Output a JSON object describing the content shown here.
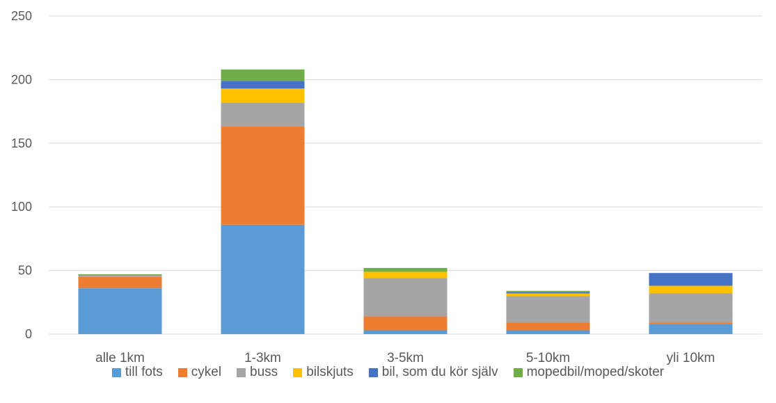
{
  "chart_data": {
    "type": "bar",
    "stacked": true,
    "categories": [
      "alle 1km",
      "1-3km",
      "3-5km",
      "5-10km",
      "yli 10km"
    ],
    "series": [
      {
        "name": "till fots",
        "color": "#5B9BD5",
        "values": [
          36,
          86,
          3,
          3,
          8
        ]
      },
      {
        "name": "cykel",
        "color": "#ED7D31",
        "values": [
          9,
          77,
          11,
          6,
          1
        ]
      },
      {
        "name": "buss",
        "color": "#A5A5A5",
        "values": [
          1,
          19,
          30,
          21,
          23
        ]
      },
      {
        "name": "bilskjuts",
        "color": "#FFC000",
        "values": [
          0,
          11,
          5,
          2,
          6
        ]
      },
      {
        "name": "bil, som du kör själv",
        "color": "#4472C4",
        "values": [
          0,
          6,
          0,
          1,
          10
        ]
      },
      {
        "name": "mopedbil/moped/skoter",
        "color": "#70AD47",
        "values": [
          1,
          9,
          3,
          1,
          0
        ]
      }
    ],
    "ylim": [
      0,
      250
    ],
    "yticks": [
      0,
      50,
      100,
      150,
      200,
      250
    ],
    "grid": true,
    "legend_position": "bottom"
  }
}
